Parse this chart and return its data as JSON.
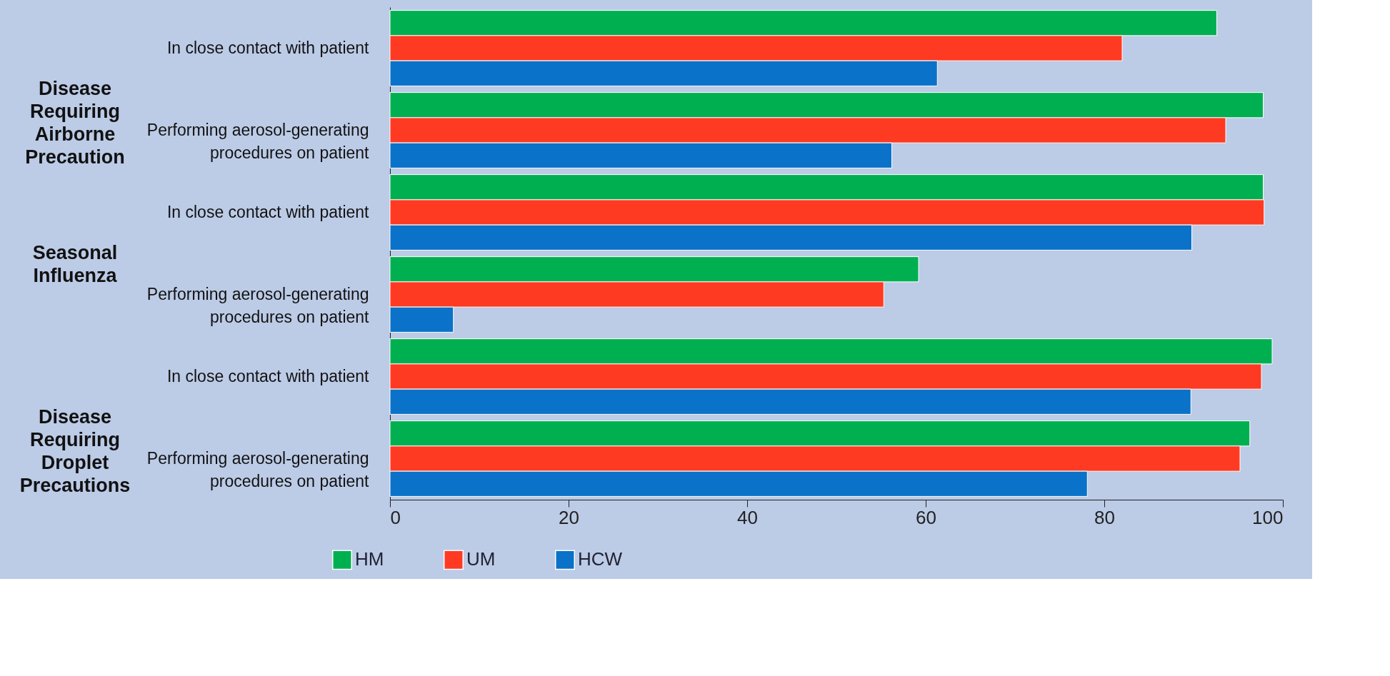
{
  "chart_data": {
    "type": "bar",
    "orientation": "horizontal",
    "categories": [
      "In close contact with patient",
      "Performing aerosol-generating procedures on patient",
      "In close contact with patient",
      "Performing aerosol-generating procedures on patient",
      "In close contact with patient",
      "Performing aerosol-generating procedures on patient"
    ],
    "series": [
      {
        "name": "HM",
        "color": "#00b050",
        "values": [
          92.6,
          97.8,
          97.8,
          59.2,
          98.8,
          96.3
        ]
      },
      {
        "name": "UM",
        "color": "#ff3a22",
        "values": [
          82.0,
          93.6,
          97.9,
          55.3,
          97.6,
          95.2
        ]
      },
      {
        "name": "HCW",
        "color": "#0a72c8",
        "values": [
          61.3,
          56.2,
          89.8,
          7.1,
          89.7,
          78.1
        ]
      }
    ],
    "annotations": [
      "Disease Requiring Airborne Precaution",
      "Seasonal Influenza",
      "Disease Requiring Droplet Precautions"
    ],
    "xlim": [
      0,
      100
    ],
    "xticks": [
      0,
      20,
      40,
      60,
      80,
      100
    ],
    "grid": false,
    "legend": "bottom"
  }
}
